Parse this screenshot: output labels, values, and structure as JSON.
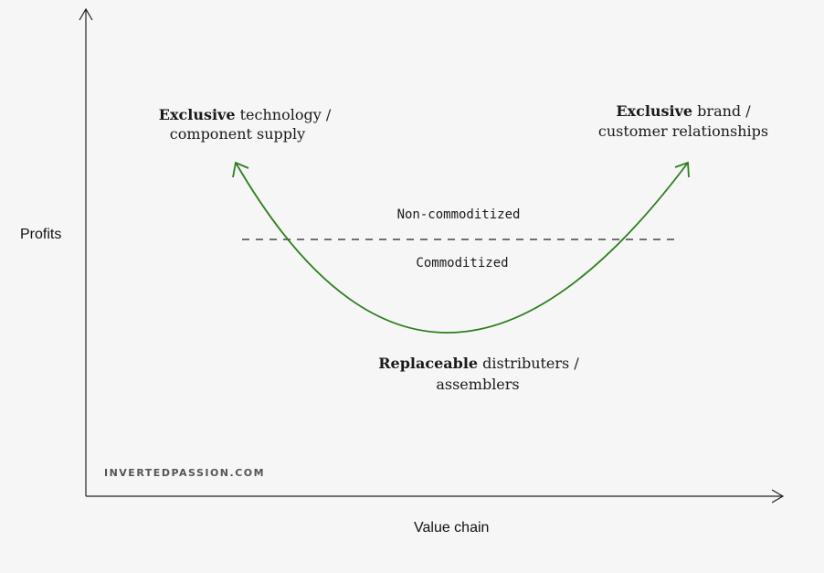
{
  "axes": {
    "y_label": "Profits",
    "x_label": "Value chain"
  },
  "zones": {
    "upper": "Non-commoditized",
    "lower": "Commoditized"
  },
  "labels": {
    "left": {
      "bold": "Exclusive",
      "rest1": " technology /",
      "line2": "component supply"
    },
    "right": {
      "bold": "Exclusive",
      "rest1": " brand /",
      "line2": "customer relationships"
    },
    "bottom": {
      "bold": "Replaceable",
      "rest1": " distributers /",
      "line2": "assemblers"
    }
  },
  "watermark": "INVERTEDPASSION.COM",
  "colors": {
    "curve": "#2e7d1f",
    "axis": "#222222",
    "background": "#f6f6f6"
  }
}
